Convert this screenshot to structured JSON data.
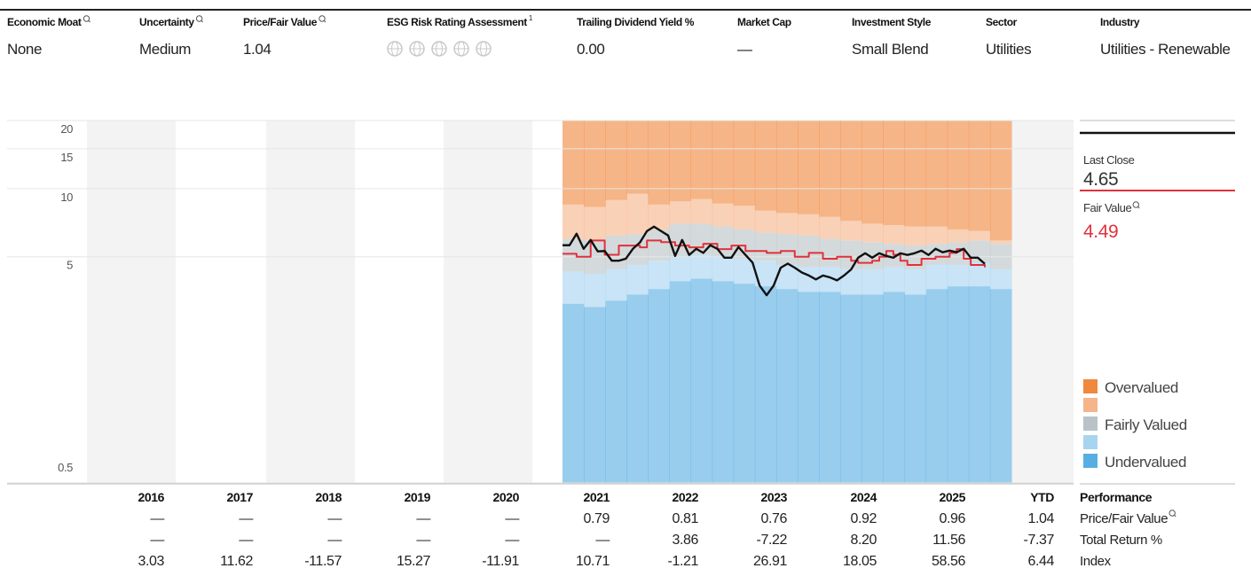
{
  "header": {
    "metrics": [
      {
        "label": "Economic Moat",
        "value": "None"
      },
      {
        "label": "Uncertainty",
        "value": "Medium"
      },
      {
        "label": "Price/Fair Value",
        "value": "1.04"
      },
      {
        "label": "ESG Risk Rating Assessment",
        "footnote": "1"
      },
      {
        "label": "Trailing Dividend Yield %",
        "value": "0.00"
      },
      {
        "label": "Market Cap",
        "value": "—"
      },
      {
        "label": "Investment Style",
        "value": "Small Blend"
      },
      {
        "label": "Sector",
        "value": "Utilities"
      },
      {
        "label": "Industry",
        "value": "Utilities - Renewable"
      }
    ]
  },
  "chart_data": {
    "type": "line",
    "log_scale": true,
    "grid": true,
    "ylim": [
      0.5,
      20
    ],
    "yticks": [
      0.5,
      5,
      10,
      15,
      20
    ],
    "series": [
      {
        "name": "Last Close",
        "color": "#111111",
        "values": [
          5.62,
          5.62,
          6.32,
          5.42,
          5.93,
          5.28,
          5.3,
          4.8,
          4.8,
          4.9,
          5.42,
          5.78,
          6.49,
          6.79,
          6.49,
          6.21,
          5.04,
          5.93,
          5.09,
          5.42,
          5.2,
          5.62,
          5.42,
          4.95,
          4.95,
          5.52,
          5.09,
          4.71,
          3.73,
          3.38,
          3.73,
          4.47,
          4.66,
          4.47,
          4.26,
          4.13,
          3.97,
          4.13,
          4.05,
          3.93,
          4.13,
          4.39,
          4.95,
          5.18,
          4.95,
          5.18,
          5.04,
          4.95,
          5.18,
          5.09,
          5.18,
          5.32,
          5.09,
          5.42,
          5.23,
          5.32,
          5.23,
          5.42,
          4.95,
          4.95,
          4.65
        ]
      },
      {
        "name": "Fair Value",
        "color": "#e0323c",
        "step": true,
        "values": [
          5.15,
          5.15,
          5.0,
          5.0,
          5.9,
          5.9,
          5.1,
          5.1,
          5.6,
          5.6,
          5.6,
          5.5,
          5.9,
          5.9,
          5.8,
          5.8,
          5.6,
          5.6,
          5.5,
          5.5,
          5.7,
          5.7,
          5.4,
          5.4,
          5.6,
          5.6,
          5.3,
          5.3,
          5.3,
          5.2,
          5.2,
          5.3,
          5.3,
          5.0,
          5.0,
          5.2,
          5.2,
          4.9,
          4.9,
          5.0,
          5.0,
          4.8,
          4.7,
          4.7,
          4.8,
          5.0,
          5.3,
          5.1,
          4.8,
          4.6,
          4.6,
          4.9,
          4.9,
          5.0,
          5.0,
          5.2,
          5.4,
          4.9,
          4.6,
          4.6,
          4.49
        ]
      }
    ],
    "bands": [
      {
        "name": "Undervalued",
        "color": "#58aee2",
        "values": [
          3.1,
          3.0,
          3.2,
          3.4,
          3.6,
          3.9,
          4.0,
          3.9,
          3.8,
          3.7,
          3.6,
          3.5,
          3.5,
          3.4,
          3.4,
          3.5,
          3.4,
          3.6,
          3.7,
          3.7,
          3.6
        ]
      },
      {
        "name": null,
        "color": "#a8d4f0",
        "values": [
          4.3,
          4.2,
          4.4,
          4.6,
          4.8,
          5.0,
          5.1,
          5.0,
          4.9,
          4.8,
          4.6,
          4.5,
          4.5,
          4.4,
          4.4,
          4.5,
          4.4,
          4.6,
          4.6,
          4.7,
          4.4
        ]
      },
      {
        "name": "Fairly Valued",
        "color": "#b9c3c7",
        "values": [
          6.0,
          5.9,
          6.2,
          6.3,
          6.6,
          7.0,
          7.0,
          6.8,
          6.6,
          6.4,
          6.3,
          6.2,
          6.0,
          5.9,
          5.8,
          5.7,
          5.6,
          5.7,
          5.8,
          5.9,
          5.7
        ]
      },
      {
        "name": null,
        "color": "#f6b48a",
        "values": [
          8.5,
          8.3,
          8.9,
          9.5,
          8.5,
          8.8,
          9.0,
          8.6,
          8.4,
          8.0,
          7.8,
          7.7,
          7.5,
          7.2,
          7.0,
          6.9,
          6.8,
          6.8,
          6.6,
          6.5,
          5.9
        ]
      },
      {
        "name": "Overvalued",
        "color": "#f0883e"
      }
    ],
    "last_close": {
      "label": "Last Close",
      "value": 4.65
    },
    "fair_value": {
      "label": "Fair Value",
      "value": 4.49
    }
  },
  "table": {
    "title": "Performance",
    "columns": [
      "2016",
      "2017",
      "2018",
      "2019",
      "2020",
      "2021",
      "2022",
      "2023",
      "2024",
      "2025",
      "YTD"
    ],
    "rows": [
      {
        "label": "Price/Fair Value",
        "cells": [
          "—",
          "—",
          "—",
          "—",
          "—",
          "0.79",
          "0.81",
          "0.76",
          "0.92",
          "0.96",
          "1.04"
        ]
      },
      {
        "label": "Total Return %",
        "cells": [
          "—",
          "—",
          "—",
          "—",
          "—",
          "—",
          "3.86",
          "-7.22",
          "8.20",
          "11.56",
          "-7.37"
        ]
      },
      {
        "label": "Index",
        "cells": [
          "3.03",
          "11.62",
          "-11.57",
          "15.27",
          "-11.91",
          "10.71",
          "-1.21",
          "26.91",
          "18.05",
          "58.56",
          "6.44"
        ]
      }
    ]
  }
}
